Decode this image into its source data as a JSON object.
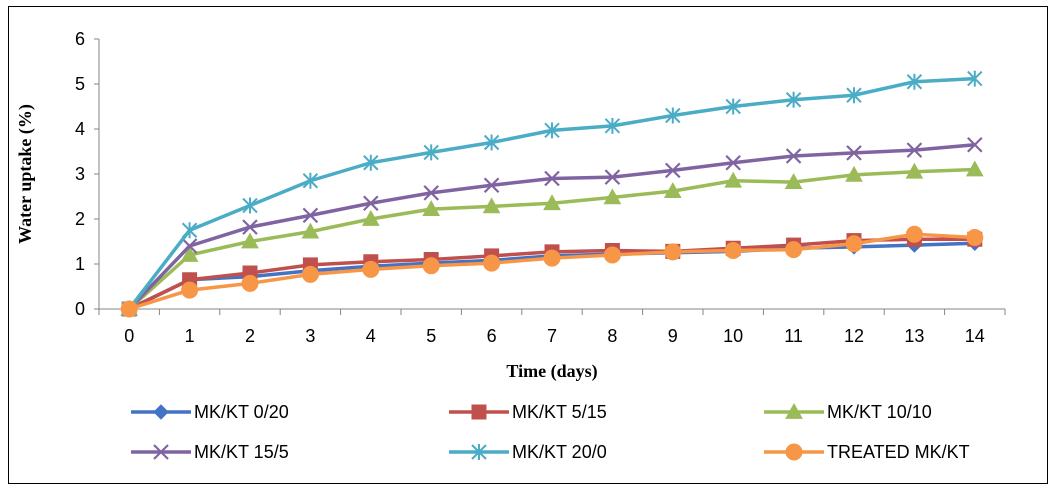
{
  "chart_data": {
    "type": "line",
    "xlabel": "Time (days)",
    "ylabel": "Water uptake (%)",
    "x": [
      0,
      1,
      2,
      3,
      4,
      5,
      6,
      7,
      8,
      9,
      10,
      11,
      12,
      13,
      14
    ],
    "xlim": [
      0,
      14
    ],
    "ylim": [
      0,
      6
    ],
    "yticks": [
      0,
      1,
      2,
      3,
      4,
      5,
      6
    ],
    "grid": false,
    "legend_position": "bottom",
    "series": [
      {
        "name": "MK/KT 0/20",
        "color": "#4472C4",
        "marker": "diamond",
        "values": [
          0,
          0.65,
          0.72,
          0.85,
          0.95,
          1.02,
          1.08,
          1.18,
          1.22,
          1.25,
          1.28,
          1.35,
          1.38,
          1.42,
          1.46
        ]
      },
      {
        "name": "MK/KT 5/15",
        "color": "#C0504D",
        "marker": "square",
        "values": [
          0,
          0.65,
          0.8,
          0.98,
          1.05,
          1.1,
          1.18,
          1.27,
          1.3,
          1.28,
          1.35,
          1.42,
          1.52,
          1.55,
          1.55
        ]
      },
      {
        "name": "MK/KT 10/10",
        "color": "#9BBB59",
        "marker": "triangle",
        "values": [
          0,
          1.2,
          1.5,
          1.72,
          2.0,
          2.22,
          2.28,
          2.35,
          2.48,
          2.62,
          2.85,
          2.82,
          2.98,
          3.05,
          3.1
        ]
      },
      {
        "name": "MK/KT 15/5",
        "color": "#8064A2",
        "marker": "x",
        "values": [
          0,
          1.4,
          1.82,
          2.08,
          2.35,
          2.58,
          2.75,
          2.9,
          2.93,
          3.08,
          3.25,
          3.4,
          3.47,
          3.53,
          3.65
        ]
      },
      {
        "name": "MK/KT 20/0",
        "color": "#4BACC6",
        "marker": "star",
        "values": [
          0,
          1.75,
          2.3,
          2.85,
          3.25,
          3.48,
          3.7,
          3.97,
          4.07,
          4.3,
          4.5,
          4.65,
          4.75,
          5.05,
          5.12
        ]
      },
      {
        "name": "TREATED MK/KT",
        "color": "#F79646",
        "marker": "circle",
        "values": [
          0,
          0.42,
          0.57,
          0.77,
          0.88,
          0.96,
          1.02,
          1.13,
          1.2,
          1.27,
          1.3,
          1.32,
          1.45,
          1.66,
          1.59
        ]
      }
    ]
  }
}
